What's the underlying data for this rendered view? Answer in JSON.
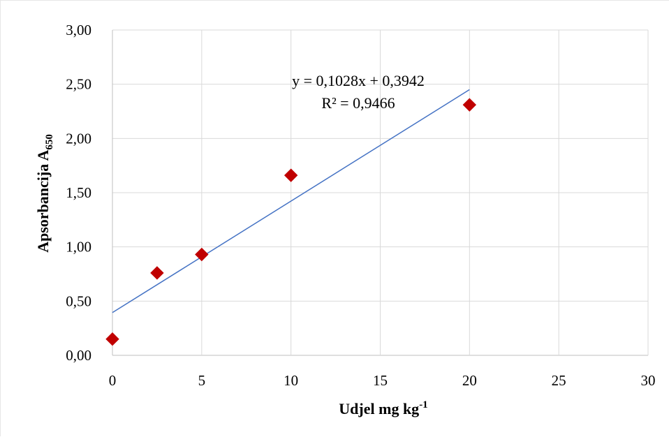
{
  "chart_data": {
    "type": "scatter",
    "x": [
      0,
      2.5,
      5,
      10,
      20
    ],
    "y": [
      0.15,
      0.76,
      0.93,
      1.66,
      2.31
    ],
    "xlabel": "Udjel mg kg",
    "xlabel_sup": "-1",
    "ylabel": "Apsorbancija A",
    "ylabel_sub": "650",
    "xlim": [
      0,
      30
    ],
    "ylim": [
      0,
      3
    ],
    "xticks": [
      0,
      5,
      10,
      15,
      20,
      25,
      30
    ],
    "yticks": [
      0,
      0.5,
      1,
      1.5,
      2,
      2.5,
      3
    ],
    "xtick_labels": [
      "0",
      "5",
      "10",
      "15",
      "20",
      "25",
      "30"
    ],
    "ytick_labels": [
      "0,00",
      "0,50",
      "1,00",
      "1,50",
      "2,00",
      "2,50",
      "3,00"
    ],
    "grid": true,
    "marker": "diamond",
    "marker_color": "#c00000",
    "trendline": {
      "slope": 0.1028,
      "intercept": 0.3942,
      "x_range": [
        0,
        20
      ],
      "color": "#4472c4",
      "equation": "y = 0,1028x + 0,3942",
      "r_squared": "R² = 0,9466"
    }
  }
}
